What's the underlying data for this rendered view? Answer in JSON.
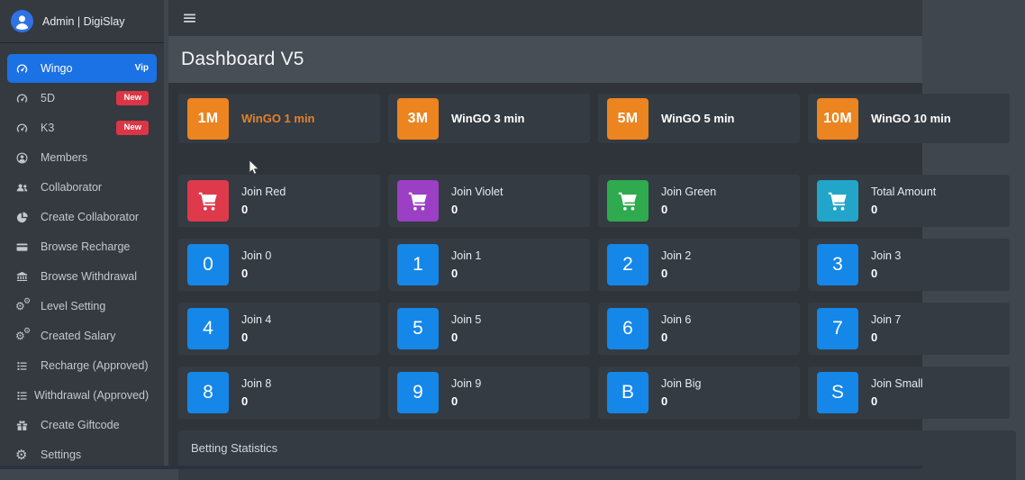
{
  "colors": {
    "sidebar_active": "#1a72e4",
    "badge_new": "#dc3545",
    "tile_orange": "#ec8420",
    "tile_blue": "#1487e9",
    "tile_red": "#df3a4b",
    "tile_violet": "#9b3fc4",
    "tile_green": "#2faa4e",
    "tile_teal": "#22a5c8",
    "active_timer_label": "#e2822b"
  },
  "topbar": {
    "menu_icon": "hamburger-icon"
  },
  "sidebar": {
    "user": {
      "name": "Admin | DigiSlay",
      "icon": "avatar-user-icon"
    },
    "items": [
      {
        "label": "Wingo",
        "icon": "gauge-icon",
        "badge": "Vip",
        "badge_style": "text",
        "active": true
      },
      {
        "label": "5D",
        "icon": "gauge-icon",
        "badge": "New",
        "badge_style": "pill",
        "active": false
      },
      {
        "label": "K3",
        "icon": "gauge-icon",
        "badge": "New",
        "badge_style": "pill",
        "active": false
      },
      {
        "label": "Members",
        "icon": "user-icon",
        "active": false
      },
      {
        "label": "Collaborator",
        "icon": "users-icon",
        "active": false
      },
      {
        "label": "Create Collaborator",
        "icon": "pie-chart-icon",
        "active": false
      },
      {
        "label": "Browse Recharge",
        "icon": "credit-card-icon",
        "active": false
      },
      {
        "label": "Browse Withdrawal",
        "icon": "bank-icon",
        "active": false
      },
      {
        "label": "Level Setting",
        "icon": "cogs-icon",
        "active": false
      },
      {
        "label": "Created Salary",
        "icon": "cogs-icon",
        "active": false
      },
      {
        "label": "Recharge (Approved)",
        "icon": "list-icon",
        "active": false
      },
      {
        "label": "Withdrawal (Approved)",
        "icon": "list-icon",
        "active": false
      },
      {
        "label": "Create Giftcode",
        "icon": "gift-icon",
        "active": false
      },
      {
        "label": "Settings",
        "icon": "gear-icon",
        "active": false
      }
    ]
  },
  "header": {
    "title": "Dashboard V5"
  },
  "timer_cards": [
    {
      "tile": "1M",
      "color": "#ec8420",
      "label": "WinGO 1 min",
      "active": true
    },
    {
      "tile": "3M",
      "color": "#ec8420",
      "label": "WinGO 3 min",
      "active": false
    },
    {
      "tile": "5M",
      "color": "#ec8420",
      "label": "WinGO 5 min",
      "active": false
    },
    {
      "tile": "10M",
      "color": "#ec8420",
      "label": "WinGO 10 min",
      "active": false
    }
  ],
  "join_rows": [
    [
      {
        "icon": "cart-icon",
        "color": "#df3a4b",
        "label": "Join Red",
        "value": "0"
      },
      {
        "icon": "cart-icon",
        "color": "#9b3fc4",
        "label": "Join Violet",
        "value": "0"
      },
      {
        "icon": "cart-icon",
        "color": "#2faa4e",
        "label": "Join Green",
        "value": "0"
      },
      {
        "icon": "cart-icon",
        "color": "#22a5c8",
        "label": "Total Amount",
        "value": "0"
      }
    ],
    [
      {
        "tile": "0",
        "color": "#1487e9",
        "label": "Join 0",
        "value": "0"
      },
      {
        "tile": "1",
        "color": "#1487e9",
        "label": "Join 1",
        "value": "0"
      },
      {
        "tile": "2",
        "color": "#1487e9",
        "label": "Join 2",
        "value": "0"
      },
      {
        "tile": "3",
        "color": "#1487e9",
        "label": "Join 3",
        "value": "0"
      }
    ],
    [
      {
        "tile": "4",
        "color": "#1487e9",
        "label": "Join 4",
        "value": "0"
      },
      {
        "tile": "5",
        "color": "#1487e9",
        "label": "Join 5",
        "value": "0"
      },
      {
        "tile": "6",
        "color": "#1487e9",
        "label": "Join 6",
        "value": "0"
      },
      {
        "tile": "7",
        "color": "#1487e9",
        "label": "Join 7",
        "value": "0"
      }
    ],
    [
      {
        "tile": "8",
        "color": "#1487e9",
        "label": "Join 8",
        "value": "0"
      },
      {
        "tile": "9",
        "color": "#1487e9",
        "label": "Join 9",
        "value": "0"
      },
      {
        "tile": "B",
        "color": "#1487e9",
        "label": "Join Big",
        "value": "0"
      },
      {
        "tile": "S",
        "color": "#1487e9",
        "label": "Join Small",
        "value": "0"
      }
    ]
  ],
  "stats": {
    "title": "Betting Statistics"
  }
}
